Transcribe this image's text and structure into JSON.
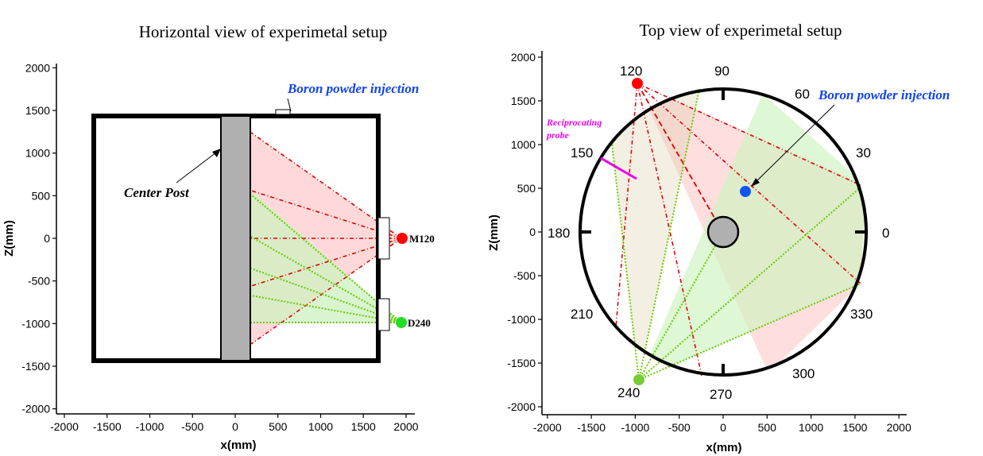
{
  "colors": {
    "red_line": "#e00000",
    "green_line": "#66cc00",
    "red_fill": "#ffcccc",
    "green_fill": "#ccf2bf",
    "blue_label": "#1144ee",
    "magenta": "#ee00ee",
    "post_gray": "#b0b0b0"
  },
  "left": {
    "title": "Horizontal view of experimetal setup",
    "xlabel": "x(mm)",
    "ylabel": "Z(mm)",
    "xticks": [
      -2000,
      -1500,
      -1000,
      -500,
      0,
      500,
      1000,
      1500,
      2000
    ],
    "yticks": [
      2000,
      1500,
      1000,
      500,
      0,
      -500,
      -1000,
      -1500,
      -2000
    ],
    "labels": {
      "boron": "Boron powder injection",
      "center_post": "Center  Post",
      "m120": "M120",
      "d240": "D240"
    }
  },
  "right": {
    "title": "Top view of experimetal setup",
    "xlabel": "x(mm)",
    "ylabel": "Z(mm)",
    "xticks": [
      -2000,
      -1500,
      -1000,
      -500,
      0,
      500,
      1000,
      1500,
      2000
    ],
    "yticks": [
      2000,
      1500,
      1000,
      500,
      0,
      -500,
      -1000,
      -1500,
      -2000
    ],
    "angles": {
      "a0": "0",
      "a30": "30",
      "a60": "60",
      "a90": "90",
      "a120": "120",
      "a150": "150",
      "a180": "180",
      "a210": "210",
      "a240": "240",
      "a270": "270",
      "a300": "300",
      "a330": "330"
    },
    "labels": {
      "boron": "Boron powder injection",
      "probe_line1": "Reciprocating",
      "probe_line2": "probe"
    }
  }
}
